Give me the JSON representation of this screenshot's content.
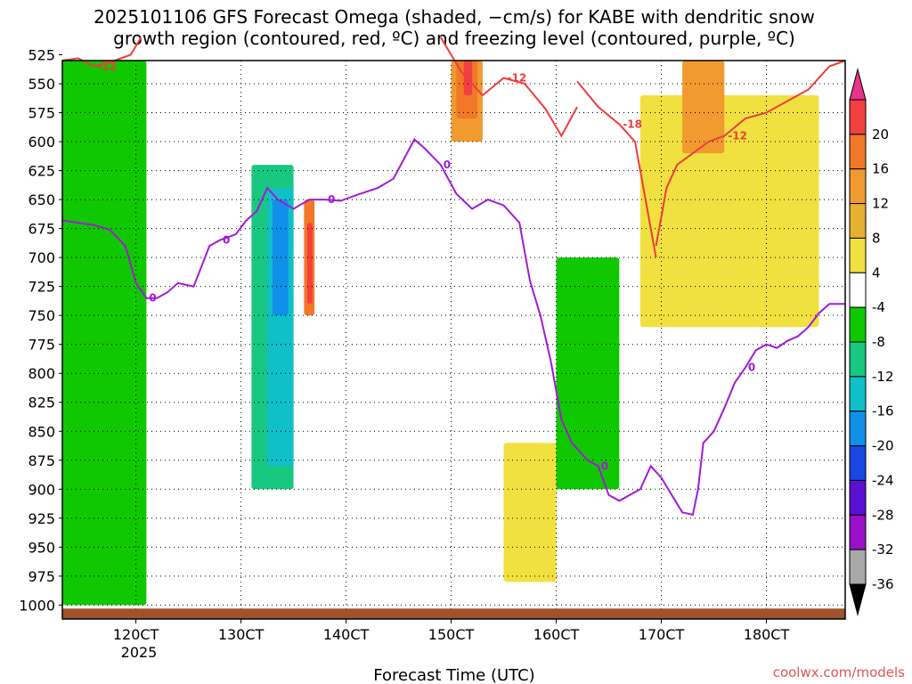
{
  "chart_data": {
    "type": "time-height cross-section (filled contours with line contours)",
    "title_line1": "2025101106 GFS Forecast Omega (shaded, −cm/s) for KABE with dendritic snow",
    "title_line2": "growth region (contoured, red, ºC) and freezing level (contoured, purple, ºC)",
    "xlabel": "Forecast Time (UTC)",
    "x_ticks": [
      "120CT",
      "130CT",
      "140CT",
      "150CT",
      "160CT",
      "170CT",
      "180CT"
    ],
    "x_tick_year": "2025",
    "x_range_hours": [
      113,
      187.5
    ],
    "y_range_hpa": [
      1012,
      530
    ],
    "y_ticks": [
      "525",
      "550",
      "575",
      "600",
      "625",
      "650",
      "675",
      "700",
      "725",
      "750",
      "775",
      "800",
      "825",
      "850",
      "875",
      "900",
      "925",
      "950",
      "975",
      "1000"
    ],
    "colorbar": {
      "labels": [
        "20",
        "16",
        "12",
        "8",
        "4",
        "-4",
        "-8",
        "-12",
        "-16",
        "-20",
        "-24",
        "-28",
        "-32",
        "-36"
      ],
      "colors": [
        "#e8338a",
        "#f04040",
        "#f07828",
        "#f09a30",
        "#e8b030",
        "#f0e040",
        "#ffffff",
        "#10c800",
        "#18c880",
        "#10c0c8",
        "#1090e8",
        "#1848e0",
        "#5a10d0",
        "#9a10c8",
        "#a8a8a8",
        "#000000"
      ]
    },
    "omega_shaded_regions": [
      {
        "level": "-4 to -8",
        "color": "#10c800",
        "hours": [
          113,
          121
        ],
        "hpa": [
          530,
          1000
        ]
      },
      {
        "level": "-8 to -12",
        "color": "#18c880",
        "hours": [
          131,
          135
        ],
        "hpa": [
          620,
          900
        ]
      },
      {
        "level": "-12 to -16",
        "color": "#10c0c8",
        "hours": [
          132.5,
          135
        ],
        "hpa": [
          640,
          880
        ]
      },
      {
        "level": "-16 to -20",
        "color": "#1090e8",
        "hours": [
          133,
          134.5
        ],
        "hpa": [
          650,
          750
        ]
      },
      {
        "level": "12 to 16",
        "color": "#f07828",
        "hours": [
          136,
          137
        ],
        "hpa": [
          650,
          750
        ]
      },
      {
        "level": "16 to 20",
        "color": "#f04040",
        "hours": [
          136.3,
          136.8
        ],
        "hpa": [
          670,
          740
        ]
      },
      {
        "level": "8 to 12",
        "color": "#f09a30",
        "hours": [
          150,
          153
        ],
        "hpa": [
          530,
          600
        ]
      },
      {
        "level": "12 to 16",
        "color": "#f07828",
        "hours": [
          150.5,
          152.5
        ],
        "hpa": [
          530,
          580
        ]
      },
      {
        "level": "16 to 20",
        "color": "#f04040",
        "hours": [
          151.2,
          152
        ],
        "hpa": [
          530,
          560
        ]
      },
      {
        "level": "4 to 8",
        "color": "#f0e040",
        "hours": [
          168,
          185
        ],
        "hpa": [
          560,
          760
        ]
      },
      {
        "level": "8 to 12",
        "color": "#f09a30",
        "hours": [
          172,
          176
        ],
        "hpa": [
          530,
          610
        ]
      },
      {
        "level": "-4 to -8",
        "color": "#10c800",
        "hours": [
          160,
          166
        ],
        "hpa": [
          700,
          900
        ]
      },
      {
        "level": "4 to 8",
        "color": "#f0e040",
        "hours": [
          155,
          160
        ],
        "hpa": [
          860,
          980
        ]
      }
    ],
    "freezing_level_0C": {
      "label": "0",
      "hours": [
        113,
        114.5,
        116,
        117.5,
        119,
        120,
        121,
        122,
        123,
        124,
        125.5,
        127,
        128,
        129.5,
        130.5,
        131.5,
        132.5,
        133.5,
        135,
        136.5,
        138,
        139.5,
        141,
        143,
        144.5,
        145.5,
        146.5,
        147.5,
        149,
        150.5,
        152,
        153.5,
        155,
        156.5,
        157.5,
        158.5,
        159.5,
        160.5,
        161.5,
        163,
        164,
        165,
        166,
        167,
        168,
        169,
        170,
        171,
        172,
        173,
        173.5,
        174,
        175,
        176,
        177,
        178,
        179,
        180,
        181,
        182,
        183,
        184,
        185,
        186,
        187.5
      ],
      "hpa": [
        668,
        670,
        672,
        676,
        690,
        722,
        735,
        735,
        730,
        722,
        725,
        690,
        685,
        680,
        668,
        660,
        640,
        650,
        658,
        650,
        650,
        651,
        646,
        640,
        632,
        615,
        598,
        606,
        620,
        645,
        658,
        650,
        655,
        670,
        720,
        750,
        790,
        840,
        860,
        875,
        880,
        905,
        910,
        905,
        900,
        880,
        890,
        905,
        920,
        922,
        900,
        860,
        850,
        830,
        808,
        795,
        780,
        775,
        778,
        772,
        768,
        760,
        748,
        740,
        740
      ]
    },
    "dendritic_growth_contours": [
      {
        "label": "-12",
        "hours": [
          113,
          114.5,
          116,
          118,
          119.5,
          120.5
        ],
        "hpa": [
          530,
          528,
          535,
          530,
          525,
          510
        ]
      },
      {
        "label": "-12",
        "hours": [
          149,
          151,
          153,
          155,
          157,
          159,
          160.5,
          162
        ],
        "hpa": [
          510,
          540,
          560,
          545,
          550,
          572,
          595,
          570
        ]
      },
      {
        "label": "-18",
        "hours": [
          162,
          164,
          166,
          167.5,
          168.5,
          169.5
        ],
        "hpa": [
          548,
          570,
          585,
          600,
          650,
          700
        ]
      },
      {
        "label": "-12",
        "hours": [
          169.5,
          170.5,
          171.5,
          173,
          174.5,
          176,
          178,
          180,
          182,
          184,
          186,
          187.5
        ],
        "hpa": [
          690,
          640,
          620,
          610,
          600,
          595,
          580,
          575,
          565,
          555,
          535,
          530
        ]
      }
    ],
    "terrain_color": "#a0522d",
    "credit": "coolwx.com/models"
  }
}
